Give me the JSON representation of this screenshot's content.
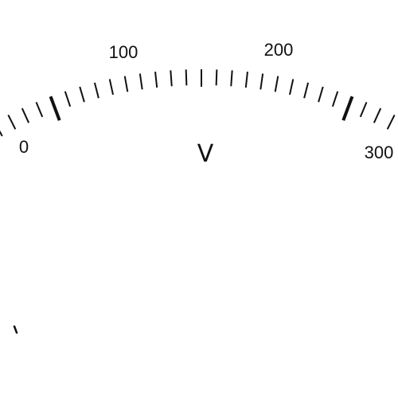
{
  "gauge": {
    "unit": "V",
    "min": 0,
    "max": 300,
    "major_ticks": [
      0,
      100,
      200,
      300
    ],
    "labels": [
      "0",
      "100",
      "200",
      "300"
    ],
    "minor_tick_step": 5,
    "colors": {
      "ink": "#111111",
      "background": "#ffffff"
    }
  }
}
